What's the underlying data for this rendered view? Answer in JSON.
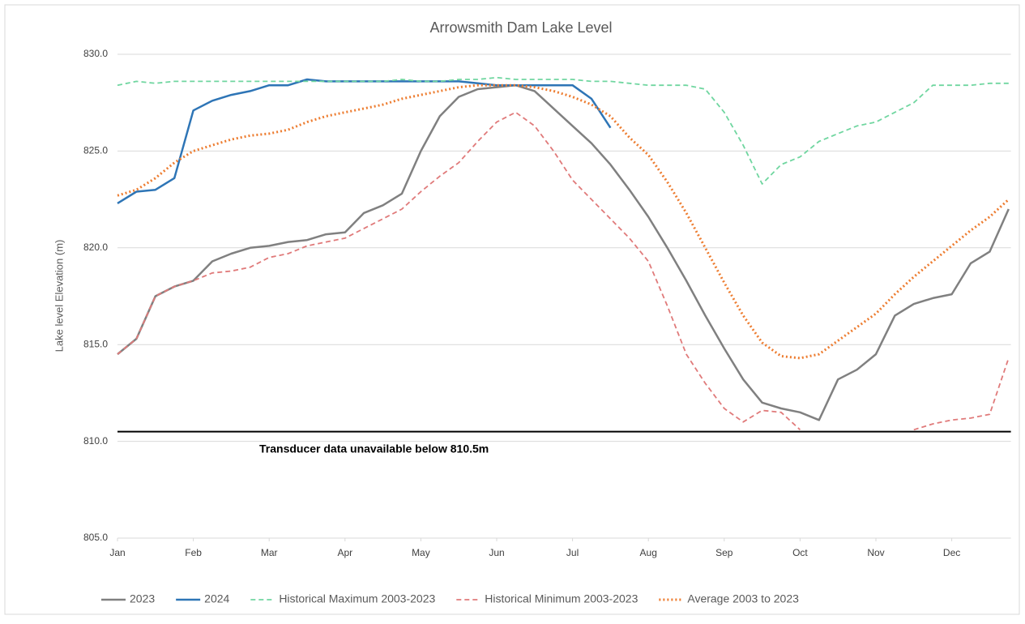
{
  "chart_data": {
    "type": "line",
    "title": "Arrowsmith Dam Lake Level",
    "y_label": "Lake level Elevation (m)",
    "x": [
      0,
      0.25,
      0.5,
      0.75,
      1,
      1.25,
      1.5,
      1.75,
      2,
      2.25,
      2.5,
      2.75,
      3,
      3.25,
      3.5,
      3.75,
      4,
      4.25,
      4.5,
      4.75,
      5,
      5.25,
      5.5,
      5.75,
      6,
      6.25,
      6.5,
      6.75,
      7,
      7.25,
      7.5,
      7.75,
      8,
      8.25,
      8.5,
      8.75,
      9,
      9.25,
      9.5,
      9.75,
      10,
      10.25,
      10.5,
      10.75,
      11,
      11.25,
      11.5,
      11.75
    ],
    "xlim": [
      0,
      11.78
    ],
    "xticks": [
      {
        "value": 0,
        "label": "Jan"
      },
      {
        "value": 1,
        "label": "Feb"
      },
      {
        "value": 2,
        "label": "Mar"
      },
      {
        "value": 3,
        "label": "Apr"
      },
      {
        "value": 4,
        "label": "May"
      },
      {
        "value": 5,
        "label": "Jun"
      },
      {
        "value": 6,
        "label": "Jul"
      },
      {
        "value": 7,
        "label": "Aug"
      },
      {
        "value": 8,
        "label": "Sep"
      },
      {
        "value": 9,
        "label": "Oct"
      },
      {
        "value": 10,
        "label": "Nov"
      },
      {
        "value": 11,
        "label": "Dec"
      }
    ],
    "ylim": [
      805,
      830
    ],
    "yticks": [
      {
        "value": 805,
        "label": "805.0"
      },
      {
        "value": 810,
        "label": "810.0"
      },
      {
        "value": 815,
        "label": "815.0"
      },
      {
        "value": 820,
        "label": "820.0"
      },
      {
        "value": 825,
        "label": "825.0"
      },
      {
        "value": 830,
        "label": "830.0"
      }
    ],
    "grid": true,
    "legend": "bottom",
    "reference_line": {
      "value": 810.5,
      "label": "Transducer data unavailable below 810.5m",
      "color": "#000000"
    },
    "series": [
      {
        "name": "2023",
        "color": "#808080",
        "style": "solid",
        "values": [
          814.5,
          815.3,
          817.5,
          818.0,
          818.3,
          819.3,
          819.7,
          820.0,
          820.1,
          820.3,
          820.4,
          820.7,
          820.8,
          821.8,
          822.2,
          822.8,
          825.0,
          826.8,
          827.8,
          828.2,
          828.3,
          828.4,
          828.1,
          827.2,
          826.3,
          825.4,
          824.3,
          823.0,
          821.6,
          820.0,
          818.3,
          816.5,
          814.8,
          813.2,
          812.0,
          811.7,
          811.5,
          811.1,
          813.2,
          813.7,
          814.5,
          816.5,
          817.1,
          817.4,
          817.6,
          819.2,
          819.8,
          822.0
        ]
      },
      {
        "name": "2024",
        "color": "#2e75b6",
        "style": "solid",
        "values": [
          822.3,
          822.9,
          823.0,
          823.6,
          827.1,
          827.6,
          827.9,
          828.1,
          828.4,
          828.4,
          828.7,
          828.6,
          828.6,
          828.6,
          828.6,
          828.6,
          828.6,
          828.6,
          828.6,
          828.5,
          828.4,
          828.4,
          828.4,
          828.4,
          828.4,
          827.7,
          826.2,
          null,
          null,
          null,
          null,
          null,
          null,
          null,
          null,
          null,
          null,
          null,
          null,
          null,
          null,
          null,
          null,
          null,
          null,
          null,
          null,
          null
        ]
      },
      {
        "name": "Historical Maximum 2003-2023",
        "color": "#70d6a0",
        "style": "dashed",
        "values": [
          828.4,
          828.6,
          828.5,
          828.6,
          828.6,
          828.6,
          828.6,
          828.6,
          828.6,
          828.6,
          828.6,
          828.6,
          828.6,
          828.6,
          828.6,
          828.7,
          828.6,
          828.6,
          828.7,
          828.7,
          828.8,
          828.7,
          828.7,
          828.7,
          828.7,
          828.6,
          828.6,
          828.5,
          828.4,
          828.4,
          828.4,
          828.2,
          827.0,
          825.3,
          823.3,
          824.3,
          824.7,
          825.5,
          825.9,
          826.3,
          826.5,
          827.0,
          827.5,
          828.4,
          828.4,
          828.4,
          828.5,
          828.5
        ]
      },
      {
        "name": "Historical Minimum 2003-2023",
        "color": "#e07a7a",
        "style": "dashed",
        "values": [
          814.5,
          815.3,
          817.5,
          818.0,
          818.3,
          818.7,
          818.8,
          819.0,
          819.5,
          819.7,
          820.1,
          820.3,
          820.5,
          821.0,
          821.5,
          822.0,
          822.9,
          823.7,
          824.4,
          825.5,
          826.5,
          827.0,
          826.3,
          825.0,
          823.5,
          822.5,
          821.5,
          820.5,
          819.3,
          817.0,
          814.5,
          813.0,
          811.7,
          811.0,
          811.6,
          811.5,
          810.6,
          null,
          null,
          null,
          null,
          null,
          810.6,
          810.9,
          811.1,
          811.2,
          811.4,
          814.3
        ]
      },
      {
        "name": "Average 2003 to 2023",
        "color": "#ed7d31",
        "style": "dotted",
        "values": [
          822.7,
          823.0,
          823.6,
          824.4,
          825.0,
          825.3,
          825.6,
          825.8,
          825.9,
          826.1,
          826.5,
          826.8,
          827.0,
          827.2,
          827.4,
          827.7,
          827.9,
          828.1,
          828.3,
          828.4,
          828.4,
          828.4,
          828.3,
          828.1,
          827.8,
          827.4,
          826.8,
          825.7,
          824.8,
          823.4,
          821.8,
          820.0,
          818.2,
          816.5,
          815.1,
          814.4,
          814.3,
          814.5,
          815.2,
          815.9,
          816.6,
          817.6,
          818.5,
          819.3,
          820.1,
          820.9,
          821.6,
          822.5
        ]
      }
    ]
  }
}
